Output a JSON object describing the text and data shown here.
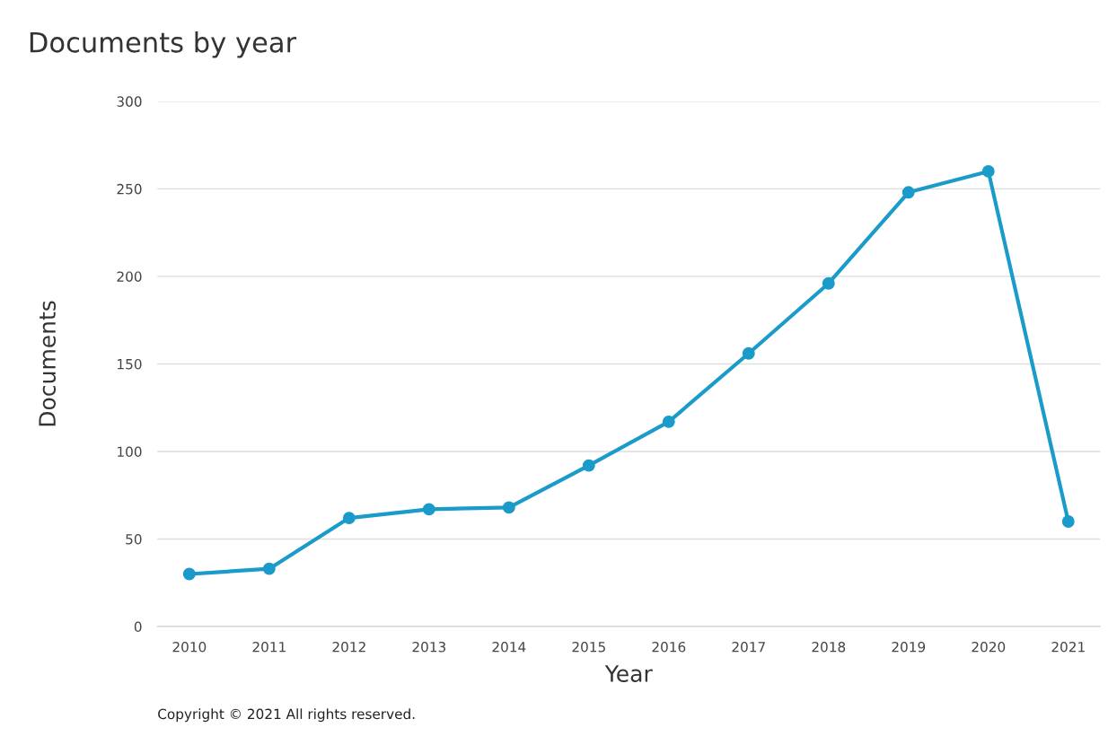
{
  "chart_data": {
    "type": "line",
    "title": "Documents by year",
    "xlabel": "Year",
    "ylabel": "Documents",
    "categories": [
      "2010",
      "2011",
      "2012",
      "2013",
      "2014",
      "2015",
      "2016",
      "2017",
      "2018",
      "2019",
      "2020",
      "2021"
    ],
    "series": [
      {
        "color": "#1a9bc9",
        "values": [
          30,
          33,
          62,
          67,
          68,
          92,
          117,
          156,
          196,
          248,
          260,
          60
        ]
      }
    ],
    "ylim": [
      0,
      300
    ],
    "yticks": [
      0,
      50,
      100,
      150,
      200,
      250,
      300
    ],
    "grid": "y",
    "marker": "circle",
    "line_style": "solid",
    "annotations": [
      "Copyright © 2021 All rights reserved."
    ]
  }
}
